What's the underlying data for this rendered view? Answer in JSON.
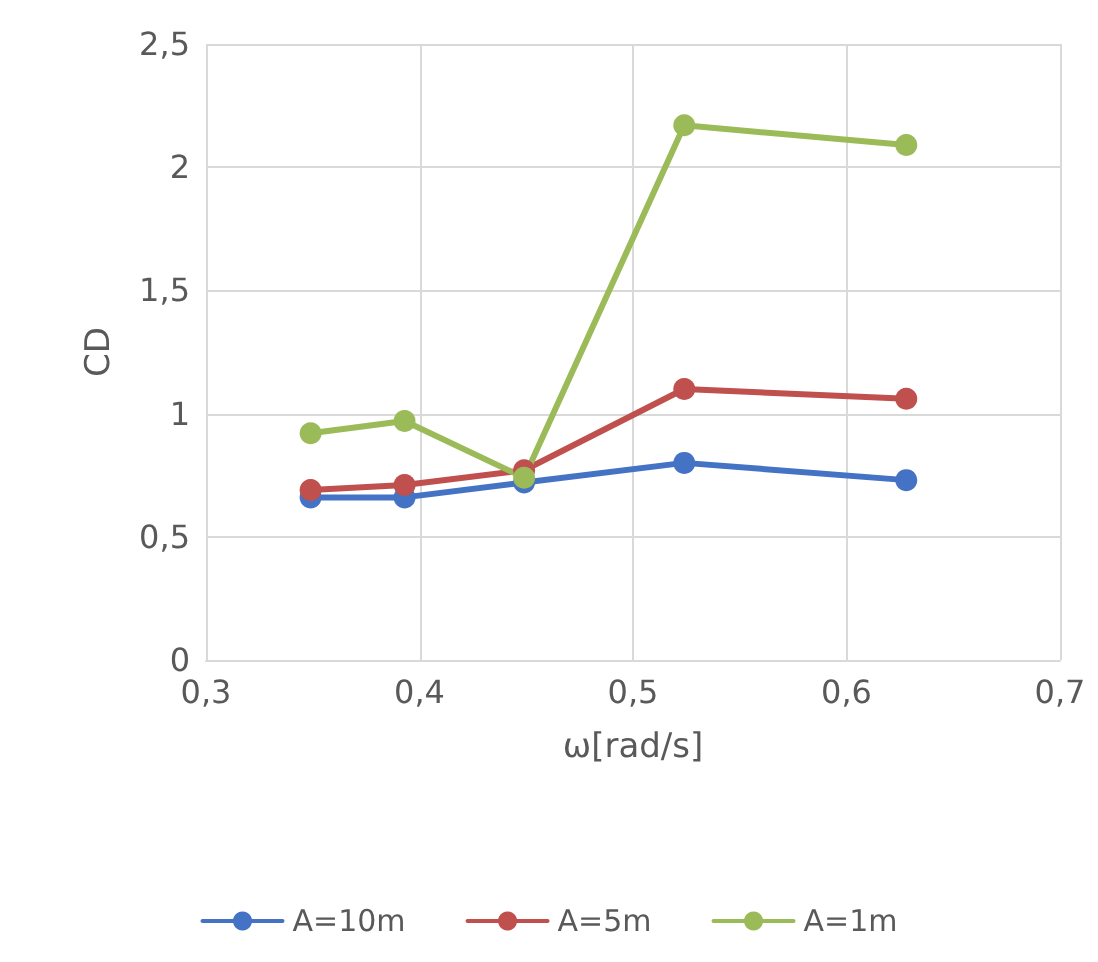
{
  "chart_data": {
    "type": "line",
    "xlabel": "ω[rad/s]",
    "ylabel": "CD",
    "x": [
      0.349,
      0.393,
      0.449,
      0.524,
      0.628
    ],
    "series": [
      {
        "name": "A=10m",
        "color": "#4472c4",
        "values": [
          0.66,
          0.66,
          0.72,
          0.8,
          0.73
        ]
      },
      {
        "name": "A=5m",
        "color": "#c0504d",
        "values": [
          0.69,
          0.71,
          0.77,
          1.1,
          1.06
        ]
      },
      {
        "name": "A=1m",
        "color": "#9bbb59",
        "values": [
          0.92,
          0.97,
          0.74,
          2.17,
          2.09
        ]
      }
    ],
    "xlim": [
      0.3,
      0.7
    ],
    "xticks": [
      {
        "value": 0.3,
        "label": "0,3"
      },
      {
        "value": 0.4,
        "label": "0,4"
      },
      {
        "value": 0.5,
        "label": "0,5"
      },
      {
        "value": 0.6,
        "label": "0,6"
      },
      {
        "value": 0.7,
        "label": "0,7"
      }
    ],
    "ylim": [
      0,
      2.5
    ],
    "yticks": [
      {
        "value": 0,
        "label": "0"
      },
      {
        "value": 0.5,
        "label": "0,5"
      },
      {
        "value": 1,
        "label": "1"
      },
      {
        "value": 1.5,
        "label": "1,5"
      },
      {
        "value": 2,
        "label": "2"
      },
      {
        "value": 2.5,
        "label": "2,5"
      }
    ],
    "grid": true,
    "legend": "bottom",
    "marker": "circle",
    "line_style": "solid"
  }
}
